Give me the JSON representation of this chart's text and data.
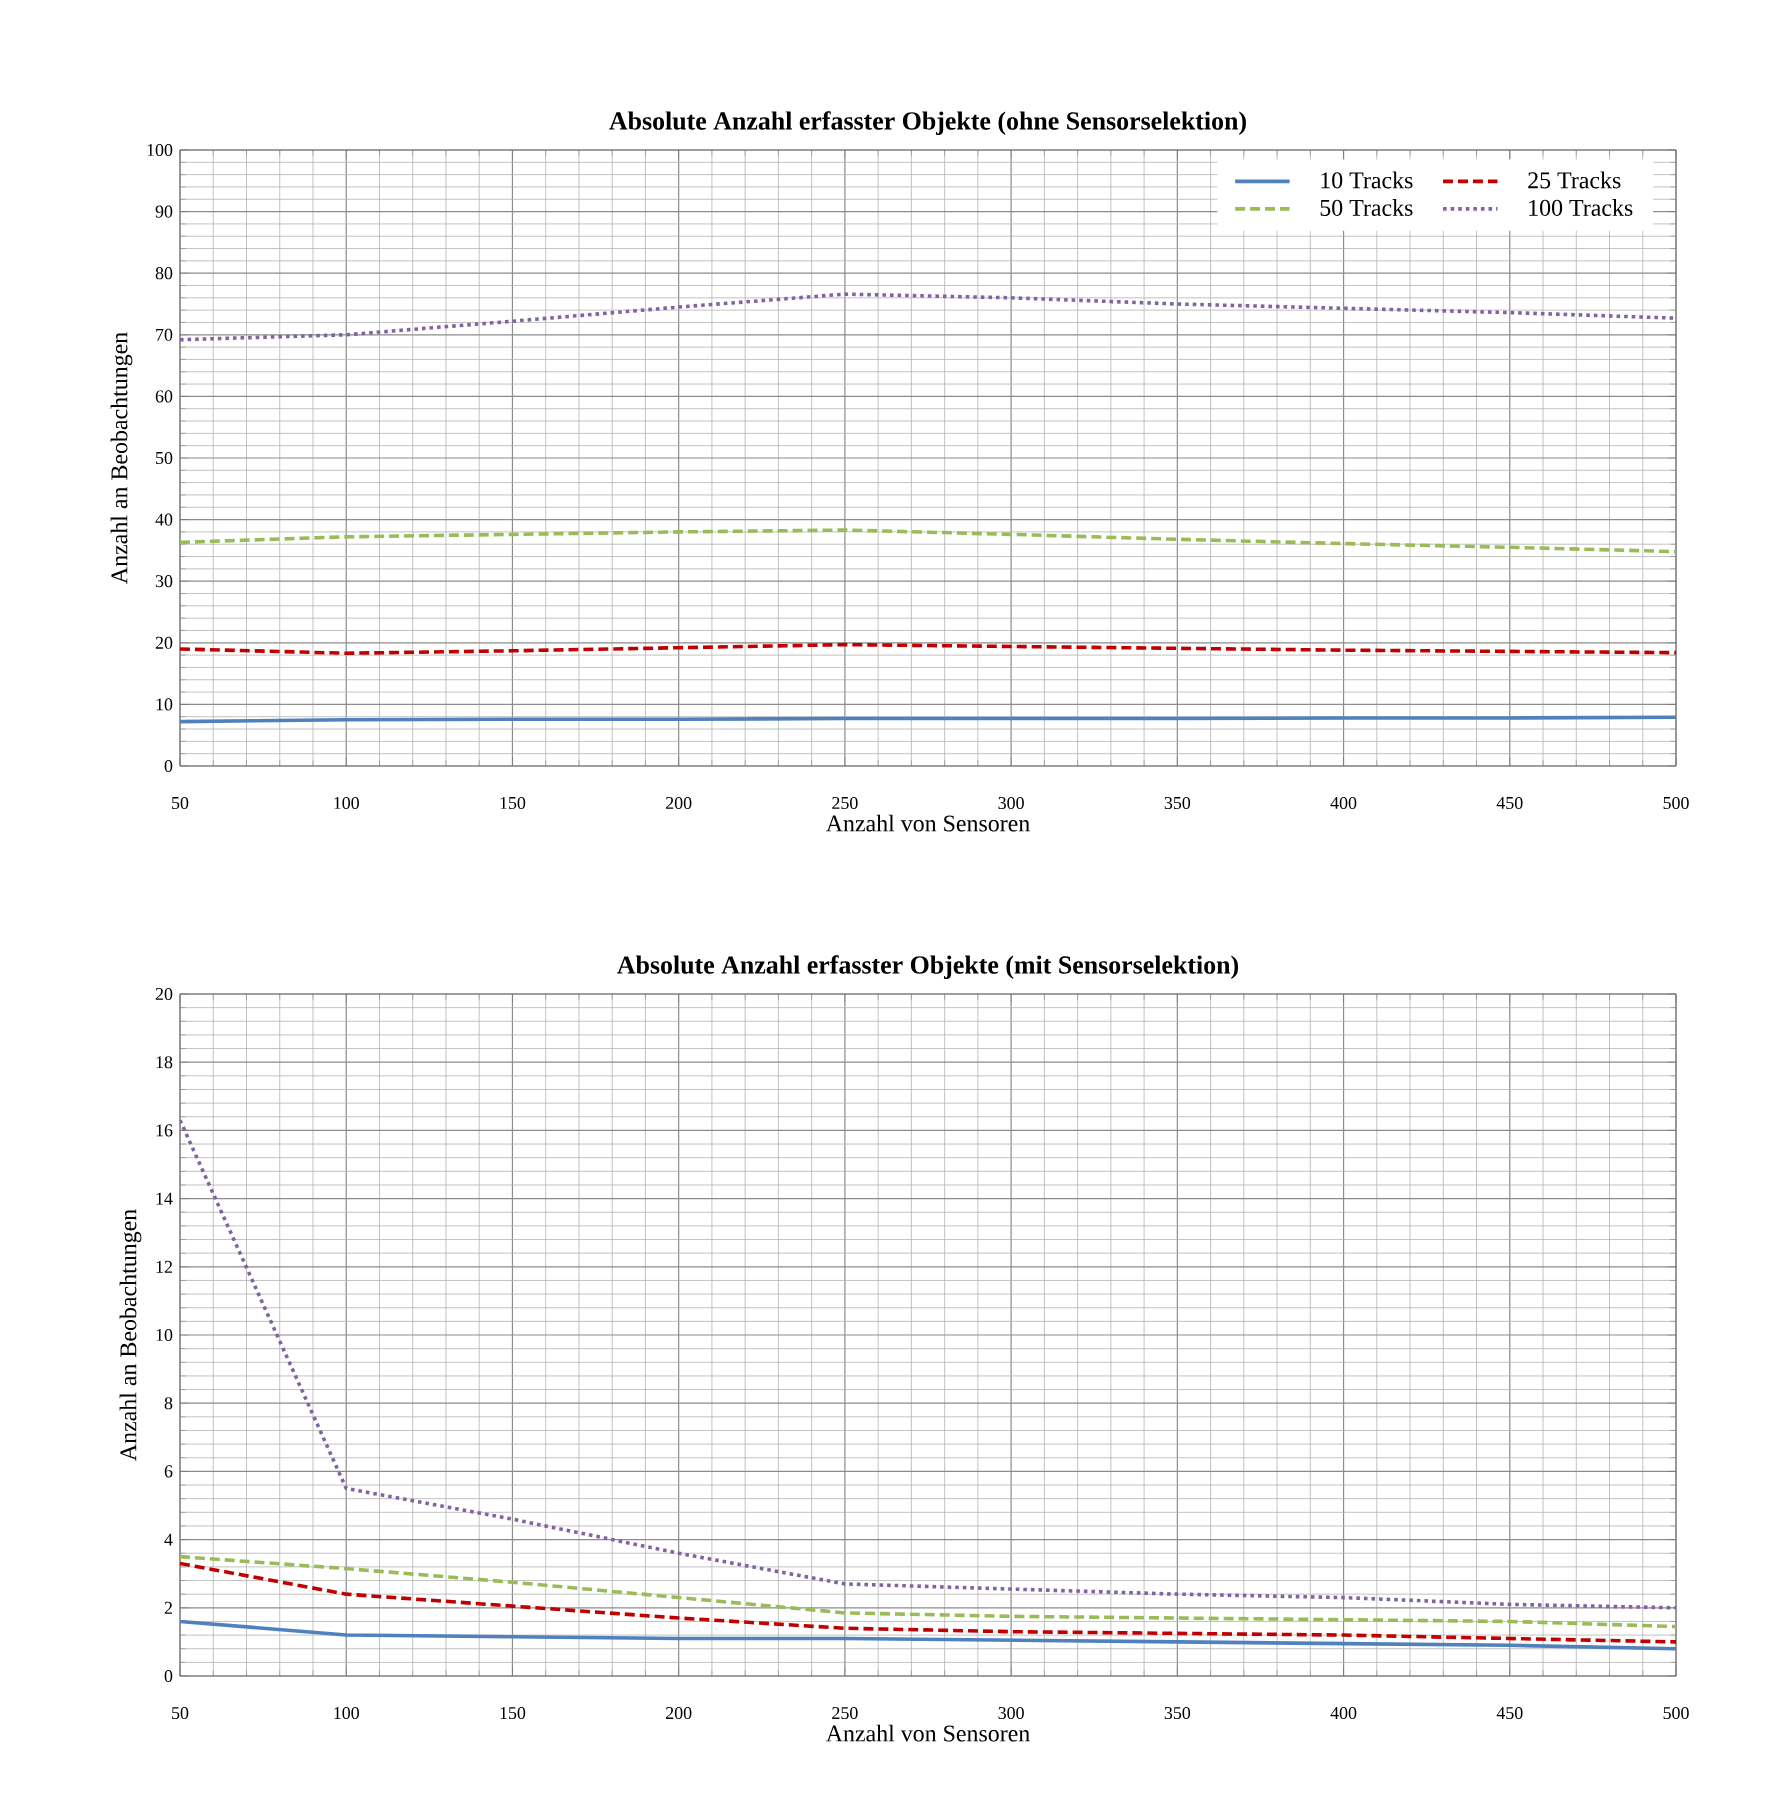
{
  "chart_data": [
    {
      "type": "line",
      "title": "Absolute Anzahl erfasster Objekte (ohne Sensorselektion)",
      "xlabel": "Anzahl von Sensoren",
      "ylabel": "Anzahl an Beobachtungen",
      "x": [
        50,
        100,
        150,
        200,
        250,
        300,
        350,
        400,
        450,
        500
      ],
      "xlim": [
        50,
        500
      ],
      "xticks": [
        50,
        100,
        150,
        200,
        250,
        300,
        350,
        400,
        450,
        500
      ],
      "ylim": [
        0,
        100
      ],
      "yticks": [
        0,
        10,
        20,
        30,
        40,
        50,
        60,
        70,
        80,
        90,
        100
      ],
      "grid": true,
      "legend": "top right",
      "marker": "none",
      "series": [
        {
          "name": "10 Tracks",
          "color": "#4f81bd",
          "line_style": "solid",
          "values": [
            7.2,
            7.5,
            7.6,
            7.6,
            7.7,
            7.7,
            7.7,
            7.8,
            7.8,
            7.9
          ]
        },
        {
          "name": "25 Tracks",
          "color": "#c00000",
          "line_style": "dashed",
          "values": [
            19.0,
            18.3,
            18.7,
            19.2,
            19.7,
            19.4,
            19.1,
            18.8,
            18.6,
            18.4
          ]
        },
        {
          "name": "50 Tracks",
          "color": "#9bbb59",
          "line_style": "dashed",
          "values": [
            36.3,
            37.2,
            37.6,
            38.0,
            38.3,
            37.6,
            36.8,
            36.1,
            35.5,
            34.8
          ]
        },
        {
          "name": "100 Tracks",
          "color": "#8064a2",
          "line_style": "dotted",
          "values": [
            69.2,
            70.0,
            72.2,
            74.5,
            76.6,
            76.0,
            75.0,
            74.3,
            73.6,
            72.7
          ]
        }
      ]
    },
    {
      "type": "line",
      "title": "Absolute Anzahl erfasster Objekte (mit Sensorselektion)",
      "xlabel": "Anzahl von Sensoren",
      "ylabel": "Anzahl an Beobachtungen",
      "x": [
        50,
        100,
        150,
        200,
        250,
        300,
        350,
        400,
        450,
        500
      ],
      "xlim": [
        50,
        500
      ],
      "xticks": [
        50,
        100,
        150,
        200,
        250,
        300,
        350,
        400,
        450,
        500
      ],
      "ylim": [
        0,
        20
      ],
      "yticks": [
        0,
        2,
        4,
        6,
        8,
        10,
        12,
        14,
        16,
        18,
        20
      ],
      "grid": true,
      "marker": "none",
      "series": [
        {
          "color": "#4f81bd",
          "line_style": "solid",
          "values": [
            1.6,
            1.2,
            1.15,
            1.1,
            1.1,
            1.05,
            1.0,
            0.95,
            0.9,
            0.8
          ]
        },
        {
          "color": "#c00000",
          "line_style": "dashed",
          "values": [
            3.3,
            2.4,
            2.05,
            1.7,
            1.4,
            1.3,
            1.25,
            1.2,
            1.1,
            1.0
          ]
        },
        {
          "color": "#9bbb59",
          "line_style": "dashed",
          "values": [
            3.5,
            3.15,
            2.75,
            2.3,
            1.85,
            1.75,
            1.7,
            1.65,
            1.6,
            1.45
          ]
        },
        {
          "color": "#8064a2",
          "line_style": "dotted",
          "values": [
            16.3,
            5.5,
            4.6,
            3.6,
            2.7,
            2.55,
            2.4,
            2.3,
            2.1,
            2.0
          ]
        }
      ]
    }
  ]
}
